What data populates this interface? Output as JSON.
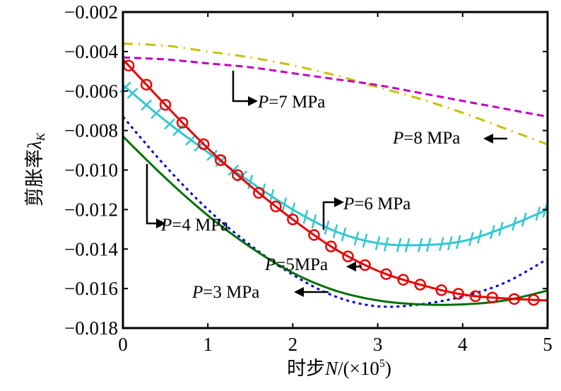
{
  "chart_data": {
    "type": "line",
    "title": "",
    "xlabel": "时步N/(×10^5)",
    "xlabel_parts": {
      "prefix": "时步",
      "var": "N",
      "suffix": "/(×10",
      "sup": "5",
      "close": ")"
    },
    "ylabel": "剪胀率λK",
    "ylabel_parts": {
      "prefix": "剪胀率",
      "var": "λ",
      "sub": "K"
    },
    "xlim": [
      0,
      5
    ],
    "ylim": [
      -0.018,
      -0.002
    ],
    "xticks": [
      0,
      1,
      2,
      3,
      4,
      5
    ],
    "xtick_labels": [
      "0",
      "1",
      "2",
      "3",
      "4",
      "5"
    ],
    "yticks": [
      -0.002,
      -0.004,
      -0.006,
      -0.008,
      -0.01,
      -0.012,
      -0.014,
      -0.016,
      -0.018
    ],
    "ytick_labels": [
      "−0.002",
      "−0.004",
      "−0.006",
      "−0.008",
      "−0.010",
      "−0.012",
      "−0.014",
      "−0.016",
      "−0.018"
    ],
    "grid": false,
    "legend": "annotations with arrows",
    "series": [
      {
        "name": "P=8 MPa",
        "color": "#c8c000",
        "style": "dashdot",
        "marker": "none",
        "x": [
          0,
          0.5,
          1,
          1.5,
          2,
          2.5,
          3,
          3.5,
          4,
          4.5,
          5
        ],
        "y": [
          -0.0036,
          -0.0037,
          -0.004,
          -0.0043,
          -0.0047,
          -0.0052,
          -0.0058,
          -0.0064,
          -0.0071,
          -0.0079,
          -0.0087
        ]
      },
      {
        "name": "P=7 MPa",
        "color": "#c000c0",
        "style": "dashed",
        "marker": "none",
        "x": [
          0,
          0.5,
          1,
          1.5,
          2,
          2.5,
          3,
          3.5,
          4,
          4.5,
          5
        ],
        "y": [
          -0.0043,
          -0.0044,
          -0.0046,
          -0.0048,
          -0.0051,
          -0.0054,
          -0.0057,
          -0.0061,
          -0.0065,
          -0.0069,
          -0.0073
        ]
      },
      {
        "name": "P=6 MPa",
        "color": "#30c8d0",
        "style": "solid",
        "marker": "plus",
        "x": [
          0,
          0.5,
          1,
          1.5,
          2,
          2.5,
          3,
          3.5,
          4,
          4.5,
          5
        ],
        "y": [
          -0.0057,
          -0.0075,
          -0.0091,
          -0.0106,
          -0.012,
          -0.0131,
          -0.0137,
          -0.0138,
          -0.0136,
          -0.0129,
          -0.012
        ]
      },
      {
        "name": "P=5 MPa",
        "color": "#0000d0",
        "style": "dotted",
        "marker": "none",
        "x": [
          0,
          0.5,
          1,
          1.5,
          2,
          2.5,
          3,
          3.5,
          4,
          4.5,
          5
        ],
        "y": [
          -0.0073,
          -0.0098,
          -0.012,
          -0.0138,
          -0.0153,
          -0.0164,
          -0.0169,
          -0.0168,
          -0.0164,
          -0.0157,
          -0.0145
        ]
      },
      {
        "name": "P=4 MPa",
        "color": "#007000",
        "style": "solid",
        "marker": "none",
        "x": [
          0,
          0.5,
          1,
          1.5,
          2,
          2.5,
          3,
          3.5,
          4,
          4.5,
          5
        ],
        "y": [
          -0.0083,
          -0.0104,
          -0.0123,
          -0.0139,
          -0.0152,
          -0.0161,
          -0.0166,
          -0.0168,
          -0.0168,
          -0.0166,
          -0.0161
        ]
      },
      {
        "name": "P=3 MPa",
        "color": "#e80000",
        "style": "solid",
        "marker": "circle",
        "x": [
          0,
          0.5,
          1,
          1.5,
          2,
          2.5,
          3,
          3.5,
          4,
          4.5,
          5
        ],
        "y": [
          -0.0044,
          -0.0067,
          -0.0089,
          -0.0108,
          -0.0125,
          -0.014,
          -0.0151,
          -0.0158,
          -0.0163,
          -0.0165,
          -0.0166
        ]
      }
    ],
    "annotations": [
      {
        "text_var": "P",
        "text_rest": "=7 MPa",
        "x": 1.5,
        "y": -0.0071
      },
      {
        "text_var": "P",
        "text_rest": "=8 MPa",
        "x": 3.15,
        "y": -0.0083
      },
      {
        "text_var": "P",
        "text_rest": "=6 MPa",
        "x": 2.6,
        "y": -0.0119
      },
      {
        "text_var": "P",
        "text_rest": "=4 MPa",
        "x": 0.45,
        "y": -0.0133
      },
      {
        "text_var": "P",
        "text_rest": "=5MPa",
        "x": 1.7,
        "y": -0.0151
      },
      {
        "text_var": "P",
        "text_rest": "=3 MPa",
        "x": 0.85,
        "y": -0.0163
      }
    ]
  }
}
